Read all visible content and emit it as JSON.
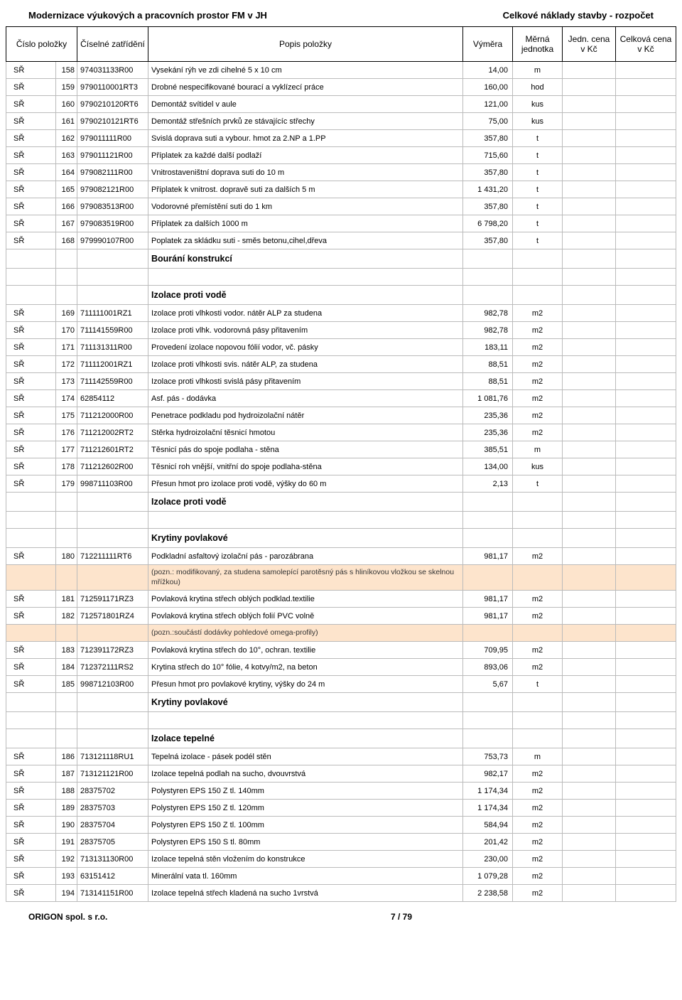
{
  "header": {
    "left": "Modernizace výukových a pracovních prostor FM v JH",
    "right": "Celkové náklady stavby - rozpočet"
  },
  "columns": [
    "Číslo položky",
    "Číselné zatřídění",
    "Popis položky",
    "Výměra",
    "Měrná jednotka",
    "Jedn. cena v Kč",
    "Celková cena v Kč"
  ],
  "rows": [
    {
      "t": "r",
      "sr": "SŘ",
      "n": "158",
      "c": "974031133R00",
      "d": "Vysekání rýh ve zdi cihelné 5 x 10 cm",
      "q": "14,00",
      "u": "m"
    },
    {
      "t": "r",
      "sr": "SŘ",
      "n": "159",
      "c": "9790110001RT3",
      "d": "Drobné nespecifikované bourací a vyklízecí práce",
      "q": "160,00",
      "u": "hod"
    },
    {
      "t": "r",
      "sr": "SŘ",
      "n": "160",
      "c": "9790210120RT6",
      "d": "Demontáž svítidel v aule",
      "q": "121,00",
      "u": "kus"
    },
    {
      "t": "r",
      "sr": "SŘ",
      "n": "161",
      "c": "9790210121RT6",
      "d": "Demontáž střešních prvků ze stávajícíc střechy",
      "q": "75,00",
      "u": "kus"
    },
    {
      "t": "r",
      "sr": "SŘ",
      "n": "162",
      "c": "979011111R00",
      "d": "Svislá doprava suti a vybour. hmot za 2.NP a 1.PP",
      "q": "357,80",
      "u": "t"
    },
    {
      "t": "r",
      "sr": "SŘ",
      "n": "163",
      "c": "979011121R00",
      "d": "Příplatek za každé další podlaží",
      "q": "715,60",
      "u": "t"
    },
    {
      "t": "r",
      "sr": "SŘ",
      "n": "164",
      "c": "979082111R00",
      "d": "Vnitrostaveništní doprava suti do 10 m",
      "q": "357,80",
      "u": "t"
    },
    {
      "t": "r",
      "sr": "SŘ",
      "n": "165",
      "c": "979082121R00",
      "d": "Příplatek k vnitrost. dopravě suti za dalších 5 m",
      "q": "1 431,20",
      "u": "t"
    },
    {
      "t": "r",
      "sr": "SŘ",
      "n": "166",
      "c": "979083513R00",
      "d": "Vodorovné přemístění suti do 1 km",
      "q": "357,80",
      "u": "t"
    },
    {
      "t": "r",
      "sr": "SŘ",
      "n": "167",
      "c": "979083519R00",
      "d": "Příplatek za dalších 1000 m",
      "q": "6 798,20",
      "u": "t"
    },
    {
      "t": "r",
      "sr": "SŘ",
      "n": "168",
      "c": "979990107R00",
      "d": "Poplatek za skládku suti - směs betonu,cihel,dřeva",
      "q": "357,80",
      "u": "t"
    },
    {
      "t": "s",
      "d": "Bourání konstrukcí"
    },
    {
      "t": "e"
    },
    {
      "t": "s",
      "d": "Izolace proti vodě"
    },
    {
      "t": "r",
      "sr": "SŘ",
      "n": "169",
      "c": "711111001RZ1",
      "d": "Izolace proti vlhkosti vodor. nátěr ALP za studena",
      "q": "982,78",
      "u": "m2"
    },
    {
      "t": "r",
      "sr": "SŘ",
      "n": "170",
      "c": "711141559R00",
      "d": "Izolace proti vlhk. vodorovná pásy přitavením",
      "q": "982,78",
      "u": "m2"
    },
    {
      "t": "r",
      "sr": "SŘ",
      "n": "171",
      "c": "711131311R00",
      "d": "Provedení izolace nopovou fólií vodor, vč. pásky",
      "q": "183,11",
      "u": "m2"
    },
    {
      "t": "r",
      "sr": "SŘ",
      "n": "172",
      "c": "711112001RZ1",
      "d": "Izolace proti vlhkosti svis. nátěr ALP, za studena",
      "q": "88,51",
      "u": "m2"
    },
    {
      "t": "r",
      "sr": "SŘ",
      "n": "173",
      "c": "711142559R00",
      "d": "Izolace proti vlhkosti svislá pásy přitavením",
      "q": "88,51",
      "u": "m2"
    },
    {
      "t": "r",
      "sr": "SŘ",
      "n": "174",
      "c": "62854112",
      "d": "Asf. pás - dodávka",
      "q": "1 081,76",
      "u": "m2"
    },
    {
      "t": "r",
      "sr": "SŘ",
      "n": "175",
      "c": "711212000R00",
      "d": "Penetrace podkladu pod hydroizolační nátěr",
      "q": "235,36",
      "u": "m2"
    },
    {
      "t": "r",
      "sr": "SŘ",
      "n": "176",
      "c": "711212002RT2",
      "d": "Stěrka hydroizolační těsnicí hmotou",
      "q": "235,36",
      "u": "m2"
    },
    {
      "t": "r",
      "sr": "SŘ",
      "n": "177",
      "c": "711212601RT2",
      "d": "Těsnicí pás do spoje podlaha - stěna",
      "q": "385,51",
      "u": "m"
    },
    {
      "t": "r",
      "sr": "SŘ",
      "n": "178",
      "c": "711212602R00",
      "d": "Těsnicí roh vnější, vnitřní do spoje podlaha-stěna",
      "q": "134,00",
      "u": "kus"
    },
    {
      "t": "r",
      "sr": "SŘ",
      "n": "179",
      "c": "998711103R00",
      "d": "Přesun hmot pro izolace proti vodě, výšky do 60 m",
      "q": "2,13",
      "u": "t"
    },
    {
      "t": "s",
      "d": "Izolace proti vodě"
    },
    {
      "t": "e"
    },
    {
      "t": "s",
      "d": "Krytiny povlakové"
    },
    {
      "t": "r",
      "sr": "SŘ",
      "n": "180",
      "c": "712211111RT6",
      "d": "Podkladní asfaltový izolační pás - parozábrana",
      "q": "981,17",
      "u": "m2"
    },
    {
      "t": "n",
      "d": "(pozn.: modifikovaný, za studena samolepící parotěsný pás s hliníkovou vložkou se skelnou mřížkou)"
    },
    {
      "t": "r",
      "sr": "SŘ",
      "n": "181",
      "c": "712591171RZ3",
      "d": "Povlaková krytina střech oblých podklad.textilie",
      "q": "981,17",
      "u": "m2"
    },
    {
      "t": "r",
      "sr": "SŘ",
      "n": "182",
      "c": "712571801RZ4",
      "d": "Povlaková krytina střech oblých folií PVC volně",
      "q": "981,17",
      "u": "m2"
    },
    {
      "t": "n",
      "d": "(pozn.:součástí dodávky pohledové omega-profily)"
    },
    {
      "t": "r",
      "sr": "SŘ",
      "n": "183",
      "c": "712391172RZ3",
      "d": "Povlaková krytina střech do 10°, ochran. textilie",
      "q": "709,95",
      "u": "m2"
    },
    {
      "t": "r",
      "sr": "SŘ",
      "n": "184",
      "c": "712372111RS2",
      "d": "Krytina střech do 10° fólie, 4 kotvy/m2, na beton",
      "q": "893,06",
      "u": "m2"
    },
    {
      "t": "r",
      "sr": "SŘ",
      "n": "185",
      "c": "998712103R00",
      "d": "Přesun hmot pro povlakové krytiny, výšky do 24 m",
      "q": "5,67",
      "u": "t"
    },
    {
      "t": "s",
      "d": "Krytiny povlakové"
    },
    {
      "t": "e"
    },
    {
      "t": "s",
      "d": "Izolace tepelné"
    },
    {
      "t": "r",
      "sr": "SŘ",
      "n": "186",
      "c": "713121118RU1",
      "d": "Tepelná izolace - pásek podél stěn",
      "q": "753,73",
      "u": "m"
    },
    {
      "t": "r",
      "sr": "SŘ",
      "n": "187",
      "c": "713121121R00",
      "d": "Izolace tepelná podlah na sucho, dvouvrstvá",
      "q": "982,17",
      "u": "m2"
    },
    {
      "t": "r",
      "sr": "SŘ",
      "n": "188",
      "c": "28375702",
      "d": "Polystyren EPS 150 Z tl. 140mm",
      "q": "1 174,34",
      "u": "m2"
    },
    {
      "t": "r",
      "sr": "SŘ",
      "n": "189",
      "c": "28375703",
      "d": "Polystyren EPS 150 Z tl. 120mm",
      "q": "1 174,34",
      "u": "m2"
    },
    {
      "t": "r",
      "sr": "SŘ",
      "n": "190",
      "c": "28375704",
      "d": "Polystyren EPS 150 Z tl. 100mm",
      "q": "584,94",
      "u": "m2"
    },
    {
      "t": "r",
      "sr": "SŘ",
      "n": "191",
      "c": "28375705",
      "d": "Polystyren EPS 150 S tl. 80mm",
      "q": "201,42",
      "u": "m2"
    },
    {
      "t": "r",
      "sr": "SŘ",
      "n": "192",
      "c": "713131130R00",
      "d": "Izolace tepelná stěn vložením do konstrukce",
      "q": "230,00",
      "u": "m2"
    },
    {
      "t": "r",
      "sr": "SŘ",
      "n": "193",
      "c": "63151412",
      "d": "Minerální vata tl. 160mm",
      "q": "1 079,28",
      "u": "m2"
    },
    {
      "t": "r",
      "sr": "SŘ",
      "n": "194",
      "c": "713141151R00",
      "d": "Izolace tepelná střech kladená na sucho 1vrstvá",
      "q": "2 238,58",
      "u": "m2"
    }
  ],
  "footer": {
    "left": "ORIGON spol. s r.o.",
    "page": "7 / 79"
  }
}
